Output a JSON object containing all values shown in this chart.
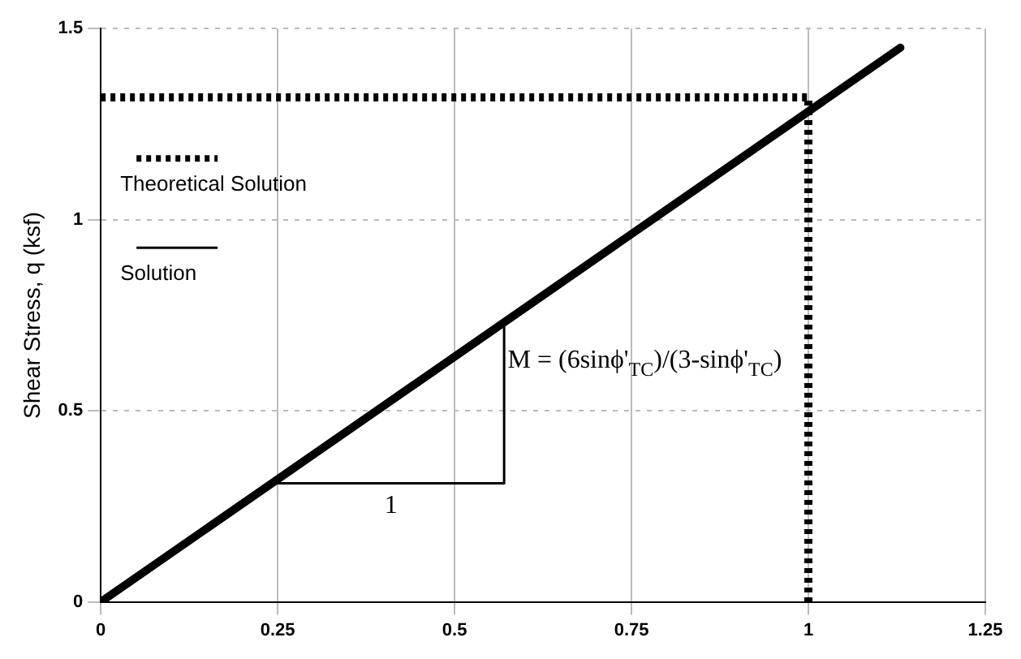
{
  "chart_data": {
    "type": "line",
    "ylabel": "Shear Stress, q (ksf)",
    "xlim": [
      0,
      1.25
    ],
    "xticks": [
      0,
      0.25,
      0.5,
      0.75,
      1,
      1.25
    ],
    "ylim": [
      0,
      1.5
    ],
    "yticks": [
      0,
      0.5,
      1,
      1.5
    ],
    "series": [
      {
        "name": "Theoretical Solution",
        "color": "#000000",
        "line_style": "dotted",
        "x": [
          0,
          1,
          1
        ],
        "values": [
          1.32,
          1.32,
          0
        ]
      },
      {
        "name": "Solution",
        "color": "#000000",
        "line_style": "solid",
        "x": [
          0,
          1.13
        ],
        "values": [
          0,
          1.45
        ]
      },
      {
        "color": "#000000",
        "line_style": "solid",
        "x": [
          0.25,
          0.57,
          0.57
        ],
        "values": [
          0.31,
          0.31,
          0.72
        ]
      }
    ],
    "annotations": [
      "M = (6sinϕ'$_{TC}$)/(3-sinϕ'$_{TC}$)",
      {
        "text": "1",
        "x": 0.41,
        "y": 0.31
      }
    ],
    "grid": true,
    "legend": "top left",
    "marker": "none"
  }
}
